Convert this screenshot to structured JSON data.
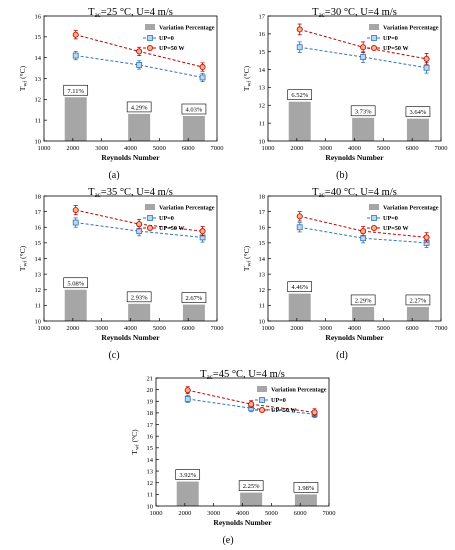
{
  "figure": {
    "panels": [
      {
        "id": "a",
        "caption": "(a)"
      },
      {
        "id": "b",
        "caption": "(b)"
      },
      {
        "id": "c",
        "caption": "(c)"
      },
      {
        "id": "d",
        "caption": "(d)"
      },
      {
        "id": "e",
        "caption": "(e)"
      }
    ]
  },
  "chart_data": [
    {
      "type": "bar+line",
      "title": "T_ac=25 °C, U=4 m/s",
      "title_parts": {
        "base": "T",
        "sub": "ac",
        "rest": "=25 °C, U=4 m/s"
      },
      "xlabel": "Reynolds Number",
      "ylabel": "T_wf (°C)",
      "ylabel_parts": {
        "base": "T",
        "sub": "wf",
        "rest": " (°C)"
      },
      "xlim": [
        1000,
        7000
      ],
      "ylim": [
        10,
        16
      ],
      "xticks": [
        1000,
        2000,
        3000,
        4000,
        5000,
        6000,
        7000
      ],
      "yticks": [
        10,
        11,
        12,
        13,
        14,
        15,
        16
      ],
      "legend": {
        "position": "top-right",
        "entries": [
          "Variation Percentage",
          "UP=0",
          "UP=50 W"
        ]
      },
      "bars": {
        "name": "Variation Percentage",
        "x": [
          2100,
          4300,
          6200
        ],
        "values": [
          12.1,
          11.3,
          11.2
        ],
        "labels": [
          "7.11%",
          "4.29%",
          "4.03%"
        ]
      },
      "series": [
        {
          "name": "UP=0",
          "x": [
            2100,
            4300,
            6500
          ],
          "values": [
            14.1,
            13.65,
            13.05
          ],
          "error": 0.2
        },
        {
          "name": "UP=50 W",
          "x": [
            2100,
            4300,
            6500
          ],
          "values": [
            15.1,
            14.3,
            13.55
          ],
          "error": 0.2
        }
      ]
    },
    {
      "type": "bar+line",
      "title": "T_ac=30 °C, U=4 m/s",
      "title_parts": {
        "base": "T",
        "sub": "ac",
        "rest": "=30 °C, U=4 m/s"
      },
      "xlabel": "Reynolds Number",
      "ylabel": "T_wf (°C)",
      "ylabel_parts": {
        "base": "T",
        "sub": "wf",
        "rest": " (°C)"
      },
      "xlim": [
        1000,
        7000
      ],
      "ylim": [
        10,
        17
      ],
      "xticks": [
        1000,
        2000,
        3000,
        4000,
        5000,
        6000,
        7000
      ],
      "yticks": [
        10,
        11,
        12,
        13,
        14,
        15,
        16,
        17
      ],
      "legend": {
        "position": "top-right",
        "entries": [
          "Variation Percentage",
          "UP=0",
          "UP=50 W"
        ]
      },
      "bars": {
        "name": "Variation Percentage",
        "x": [
          2100,
          4300,
          6200
        ],
        "values": [
          12.2,
          11.3,
          11.25
        ],
        "labels": [
          "6.52%",
          "3.73%",
          "3.64%"
        ]
      },
      "series": [
        {
          "name": "UP=0",
          "x": [
            2100,
            4300,
            6500
          ],
          "values": [
            15.25,
            14.7,
            14.1
          ],
          "error": 0.3
        },
        {
          "name": "UP=50 W",
          "x": [
            2100,
            4300,
            6500
          ],
          "values": [
            16.25,
            15.25,
            14.6
          ],
          "error": 0.3
        }
      ]
    },
    {
      "type": "bar+line",
      "title": "T_ac=35 °C, U=4 m/s",
      "title_parts": {
        "base": "T",
        "sub": "ac",
        "rest": "=35 °C, U=4 m/s"
      },
      "xlabel": "Reynolds Number",
      "ylabel": "T_wf (°C)",
      "ylabel_parts": {
        "base": "T",
        "sub": "wf",
        "rest": " (°C)"
      },
      "xlim": [
        1000,
        7000
      ],
      "ylim": [
        10,
        18
      ],
      "xticks": [
        1000,
        2000,
        3000,
        4000,
        5000,
        6000,
        7000
      ],
      "yticks": [
        10,
        11,
        12,
        13,
        14,
        15,
        16,
        17,
        18
      ],
      "legend": {
        "position": "top-right",
        "entries": [
          "Variation Percentage",
          "UP=0",
          "UP=50 W"
        ]
      },
      "bars": {
        "name": "Variation Percentage",
        "x": [
          2100,
          4300,
          6200
        ],
        "values": [
          12.0,
          11.1,
          11.05
        ],
        "labels": [
          "5.08%",
          "2.93%",
          "2.67%"
        ]
      },
      "series": [
        {
          "name": "UP=0",
          "x": [
            2100,
            4300,
            6500
          ],
          "values": [
            16.3,
            15.75,
            15.35
          ],
          "error": 0.3
        },
        {
          "name": "UP=50 W",
          "x": [
            2100,
            4300,
            6500
          ],
          "values": [
            17.1,
            16.2,
            15.75
          ],
          "error": 0.3
        }
      ]
    },
    {
      "type": "bar+line",
      "title": "T_ac=40 °C, U=4 m/s",
      "title_parts": {
        "base": "T",
        "sub": "ac",
        "rest": "=40 °C, U=4 m/s"
      },
      "xlabel": "Reynolds Number",
      "ylabel": "T_wf (°C)",
      "ylabel_parts": {
        "base": "T",
        "sub": "wf",
        "rest": " (°C)"
      },
      "xlim": [
        1000,
        7000
      ],
      "ylim": [
        10,
        18
      ],
      "xticks": [
        1000,
        2000,
        3000,
        4000,
        5000,
        6000,
        7000
      ],
      "yticks": [
        10,
        11,
        12,
        13,
        14,
        15,
        16,
        17,
        18
      ],
      "legend": {
        "position": "top-right",
        "entries": [
          "Variation Percentage",
          "UP=0",
          "UP=50 W"
        ]
      },
      "bars": {
        "name": "Variation Percentage",
        "x": [
          2100,
          4300,
          6200
        ],
        "values": [
          11.75,
          10.9,
          10.9
        ],
        "labels": [
          "4.46%",
          "2.29%",
          "2.27%"
        ]
      },
      "series": [
        {
          "name": "UP=0",
          "x": [
            2100,
            4300,
            6500
          ],
          "values": [
            16.0,
            15.3,
            15.0
          ],
          "error": 0.3
        },
        {
          "name": "UP=50 W",
          "x": [
            2100,
            4300,
            6500
          ],
          "values": [
            16.7,
            15.75,
            15.35
          ],
          "error": 0.3
        }
      ]
    },
    {
      "type": "bar+line",
      "title": "T_ac=45 °C, U=4 m/s",
      "title_parts": {
        "base": "T",
        "sub": "ac",
        "rest": "=45 °C, U=4 m/s"
      },
      "xlabel": "Reynolds Number",
      "ylabel": "T_wf (°C)",
      "ylabel_parts": {
        "base": "T",
        "sub": "wf",
        "rest": " (°C)"
      },
      "xlim": [
        1000,
        7000
      ],
      "ylim": [
        10,
        21
      ],
      "xticks": [
        1000,
        2000,
        3000,
        4000,
        5000,
        6000,
        7000
      ],
      "yticks": [
        10,
        11,
        12,
        13,
        14,
        15,
        16,
        17,
        18,
        19,
        20,
        21
      ],
      "legend": {
        "position": "top-right",
        "entries": [
          "Variation Percentage",
          "UP=0",
          "UP=50 W"
        ]
      },
      "bars": {
        "name": "Variation Percentage",
        "x": [
          2100,
          4300,
          6200
        ],
        "values": [
          12.1,
          11.15,
          11.0
        ],
        "labels": [
          "3.92%",
          "2.25%",
          "1.98%"
        ]
      },
      "series": [
        {
          "name": "UP=0",
          "x": [
            2100,
            4300,
            6500
          ],
          "values": [
            19.2,
            18.4,
            17.9
          ],
          "error": 0.3
        },
        {
          "name": "UP=50 W",
          "x": [
            2100,
            4300,
            6500
          ],
          "values": [
            19.95,
            18.75,
            18.05
          ],
          "error": 0.3
        }
      ]
    }
  ],
  "colors": {
    "bar": "#a6a6a6",
    "up0": "#2e75b6",
    "up0_fill": "#bdd7ee",
    "up50": "#c00000",
    "up50_fill": "#f4b183",
    "axis": "#000000"
  }
}
